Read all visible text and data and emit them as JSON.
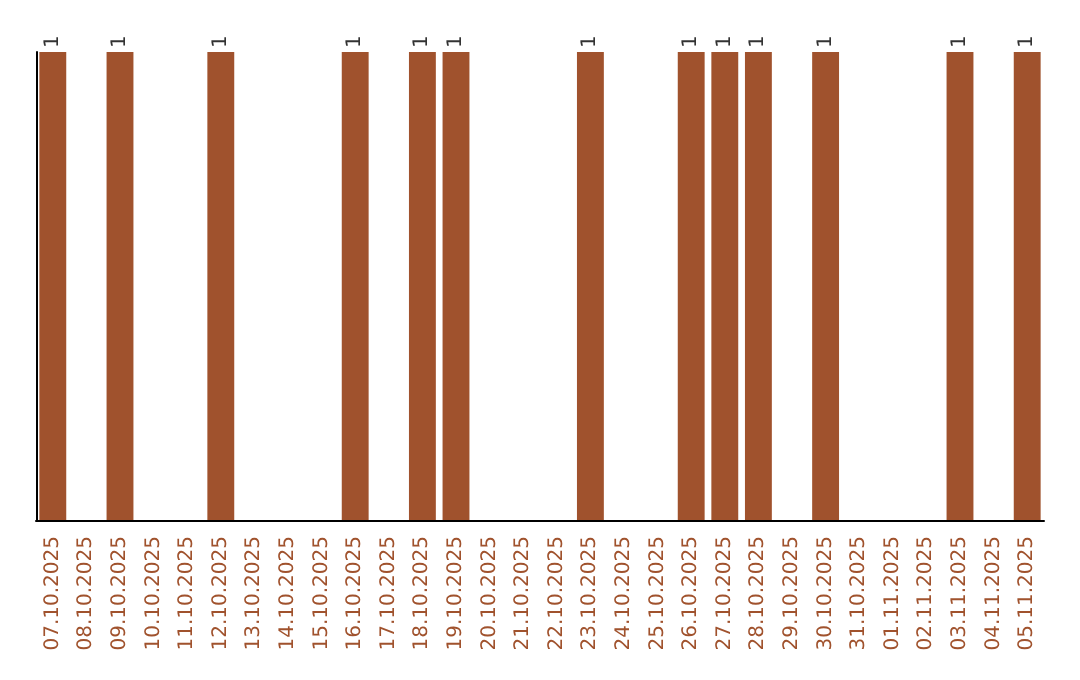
{
  "chart_data": {
    "type": "bar",
    "categories": [
      "07.10.2025",
      "08.10.2025",
      "09.10.2025",
      "10.10.2025",
      "11.10.2025",
      "12.10.2025",
      "13.10.2025",
      "14.10.2025",
      "15.10.2025",
      "16.10.2025",
      "17.10.2025",
      "18.10.2025",
      "19.10.2025",
      "20.10.2025",
      "21.10.2025",
      "22.10.2025",
      "23.10.2025",
      "24.10.2025",
      "25.10.2025",
      "26.10.2025",
      "27.10.2025",
      "28.10.2025",
      "29.10.2025",
      "30.10.2025",
      "31.10.2025",
      "01.11.2025",
      "02.11.2025",
      "03.11.2025",
      "04.11.2025",
      "05.11.2025"
    ],
    "values": [
      1,
      0,
      1,
      0,
      0,
      1,
      0,
      0,
      0,
      1,
      0,
      1,
      1,
      0,
      0,
      0,
      1,
      0,
      0,
      1,
      1,
      1,
      0,
      1,
      0,
      0,
      0,
      1,
      0,
      1
    ],
    "value_labels": [
      "1",
      null,
      "1",
      null,
      null,
      "1",
      null,
      null,
      null,
      "1",
      null,
      "1",
      "1",
      null,
      null,
      null,
      "1",
      null,
      null,
      "1",
      "1",
      "1",
      null,
      "1",
      null,
      null,
      null,
      "1",
      null,
      "1"
    ],
    "color": "#a0522d",
    "tick_labels": "x",
    "grid": false
  }
}
